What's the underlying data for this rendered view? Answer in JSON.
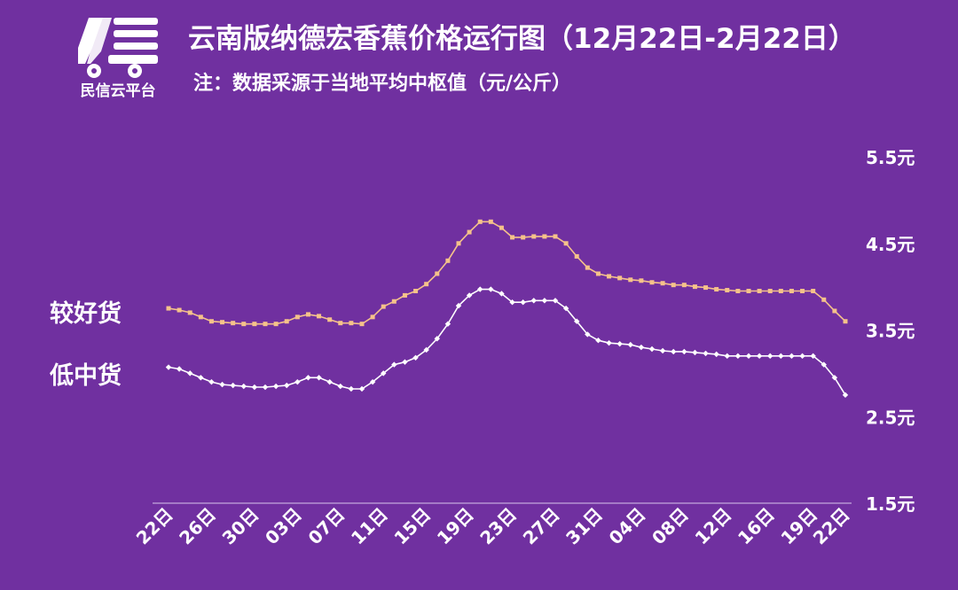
{
  "brand": {
    "name": "民信云平台"
  },
  "header": {
    "title": "云南版纳德宏香蕉价格运行图（12月22日-2月22日）",
    "subtitle": "注：数据采源于当地平均中枢值（元/公斤）"
  },
  "colors": {
    "background": "#7030a0",
    "series_good": "#f5c28a",
    "series_low": "#ffffff"
  },
  "chart_data": {
    "type": "line",
    "title": "云南版纳德宏香蕉价格运行图（12月22日-2月22日）",
    "ylim": [
      1.5,
      5.5
    ],
    "y_ticks": [
      1.5,
      2.5,
      3.5,
      4.5,
      5.5
    ],
    "y_tick_labels": [
      "1.5元",
      "2.5元",
      "3.5元",
      "4.5元",
      "5.5元"
    ],
    "x_tick_labels": [
      "22日",
      "26日",
      "30日",
      "03日",
      "07日",
      "11日",
      "15日",
      "19日",
      "23日",
      "27日",
      "31日",
      "04日",
      "08日",
      "12日",
      "16日",
      "19日",
      "22日"
    ],
    "x_tick_index": [
      0,
      4,
      8,
      12,
      16,
      20,
      24,
      28,
      32,
      36,
      40,
      44,
      48,
      52,
      56,
      60,
      63
    ],
    "grid": false,
    "legend": "left",
    "series": [
      {
        "name": "较好货",
        "values": [
          3.75,
          3.73,
          3.7,
          3.65,
          3.6,
          3.59,
          3.58,
          3.57,
          3.57,
          3.57,
          3.57,
          3.6,
          3.65,
          3.68,
          3.66,
          3.62,
          3.58,
          3.58,
          3.57,
          3.65,
          3.77,
          3.83,
          3.9,
          3.95,
          4.03,
          4.15,
          4.3,
          4.5,
          4.63,
          4.75,
          4.75,
          4.68,
          4.57,
          4.57,
          4.58,
          4.58,
          4.58,
          4.5,
          4.35,
          4.22,
          4.15,
          4.12,
          4.1,
          4.08,
          4.07,
          4.05,
          4.04,
          4.02,
          4.02,
          4.0,
          3.99,
          3.97,
          3.96,
          3.95,
          3.95,
          3.95,
          3.95,
          3.95,
          3.95,
          3.95,
          3.95,
          3.85,
          3.72,
          3.6
        ]
      },
      {
        "name": "低中货",
        "values": [
          3.07,
          3.05,
          3.0,
          2.95,
          2.9,
          2.87,
          2.86,
          2.85,
          2.84,
          2.84,
          2.85,
          2.86,
          2.9,
          2.95,
          2.95,
          2.9,
          2.85,
          2.82,
          2.82,
          2.9,
          3.0,
          3.1,
          3.13,
          3.18,
          3.27,
          3.4,
          3.57,
          3.78,
          3.9,
          3.97,
          3.97,
          3.92,
          3.82,
          3.82,
          3.84,
          3.84,
          3.84,
          3.75,
          3.6,
          3.45,
          3.38,
          3.35,
          3.34,
          3.33,
          3.3,
          3.28,
          3.26,
          3.25,
          3.25,
          3.24,
          3.23,
          3.22,
          3.2,
          3.2,
          3.2,
          3.2,
          3.2,
          3.2,
          3.2,
          3.2,
          3.2,
          3.1,
          2.95,
          2.75
        ]
      }
    ]
  }
}
